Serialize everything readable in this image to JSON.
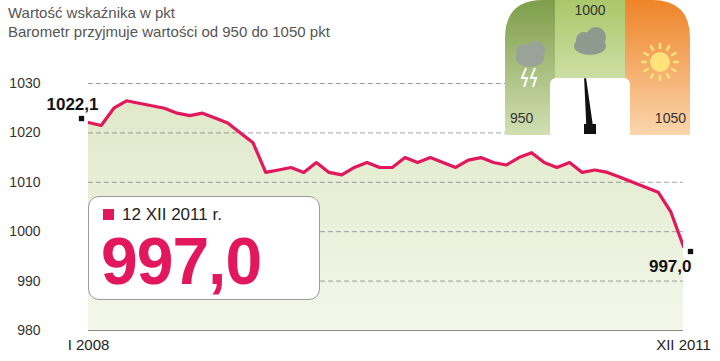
{
  "chart_data": {
    "type": "line",
    "title": "Wartość wskaźnika w pkt",
    "subtitle": "Barometr przyjmuje wartości od 950 do 1050 pkt",
    "categories": [
      "I 2008",
      null,
      null,
      null,
      null,
      null,
      null,
      null,
      null,
      null,
      null,
      null,
      null,
      null,
      null,
      null,
      null,
      null,
      null,
      null,
      null,
      null,
      null,
      null,
      null,
      null,
      null,
      null,
      null,
      null,
      null,
      null,
      null,
      null,
      null,
      null,
      null,
      null,
      null,
      null,
      null,
      null,
      null,
      null,
      null,
      null,
      null,
      "XII 2011"
    ],
    "values": [
      1022.1,
      1021.5,
      1025,
      1026.5,
      1026,
      1025.5,
      1025,
      1024,
      1023.5,
      1024,
      1023,
      1022,
      1020,
      1018,
      1012,
      1012.5,
      1013,
      1012,
      1014,
      1012,
      1011.5,
      1013,
      1014,
      1013,
      1013,
      1015,
      1014,
      1015,
      1014,
      1013,
      1014.5,
      1015,
      1014,
      1013.5,
      1015,
      1016,
      1014,
      1013,
      1014,
      1012,
      1012.5,
      1012,
      1011,
      1010,
      1009,
      1008,
      1004,
      997.0
    ],
    "color": "#e3175b",
    "ylim": [
      980,
      1030
    ],
    "yticks": [
      980,
      990,
      1000,
      1010,
      1020,
      1030
    ],
    "grid": true,
    "annotations": [
      {
        "x": "I 2008",
        "value": 1022.1,
        "text": "1022,1"
      },
      {
        "x": "XII 2011",
        "value": 997.0,
        "text": "997,0"
      }
    ],
    "callout": {
      "date": "12 XII 2011 r.",
      "text": "997,0"
    },
    "gauge_ticks": [
      950,
      1000,
      1050
    ],
    "gauge_value": 997.0
  }
}
